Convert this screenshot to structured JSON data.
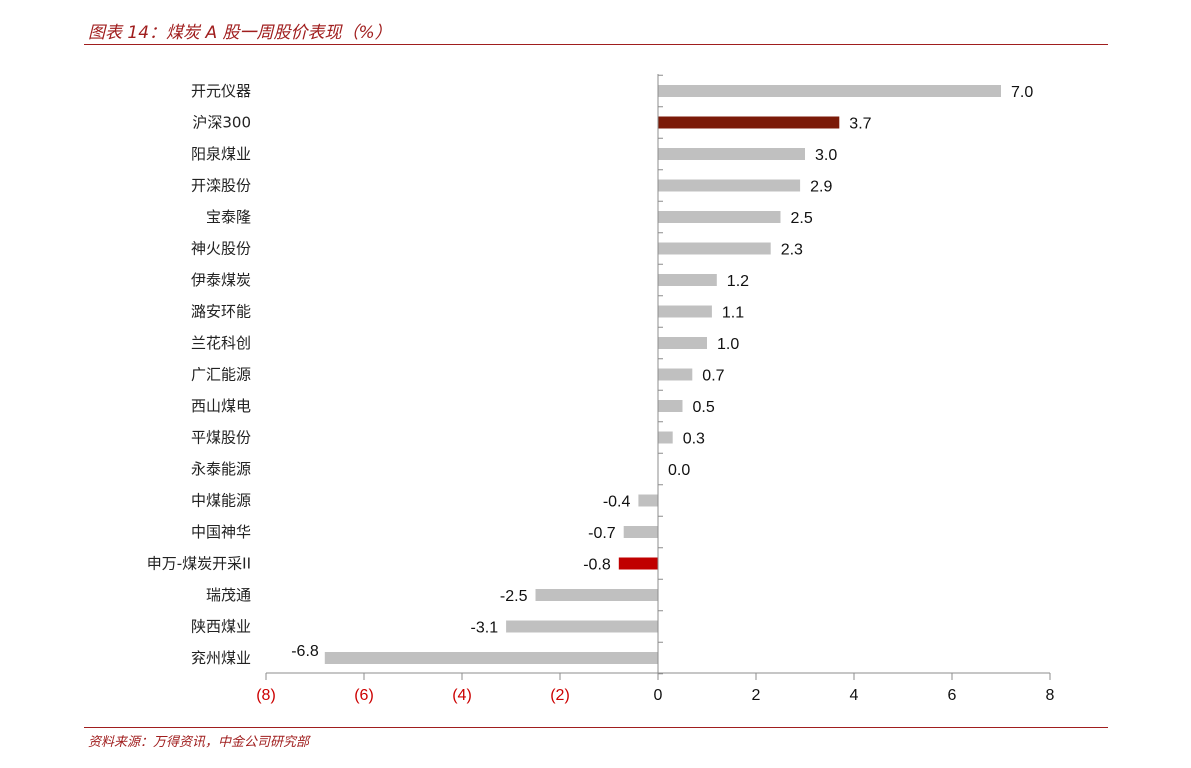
{
  "header": {
    "title": "图表 14：煤炭 A 股一周股价表现（%）"
  },
  "footer": {
    "source": "资料来源：万得资讯，中金公司研究部"
  },
  "colors": {
    "accent": "#a01e1e",
    "bar_default": "#c0c0c0",
    "bar_csi300": "#7b1a08",
    "bar_sector": "#c00000",
    "negative_tick": "#cc0000",
    "positive_tick": "#111111"
  },
  "chart_data": {
    "type": "bar",
    "orientation": "horizontal",
    "categories": [
      "开元仪器",
      "沪深300",
      "阳泉煤业",
      "开滦股份",
      "宝泰隆",
      "神火股份",
      "伊泰煤炭",
      "潞安环能",
      "兰花科创",
      "广汇能源",
      "西山煤电",
      "平煤股份",
      "永泰能源",
      "中煤能源",
      "中国神华",
      "申万-煤炭开采II",
      "瑞茂通",
      "陕西煤业",
      "兖州煤业"
    ],
    "values": [
      7.0,
      3.7,
      3.0,
      2.9,
      2.5,
      2.3,
      1.2,
      1.1,
      1.0,
      0.7,
      0.5,
      0.3,
      0.0,
      -0.4,
      -0.7,
      -0.8,
      -2.5,
      -3.1,
      -6.8
    ],
    "value_labels": [
      "7.0",
      "3.7",
      "3.0",
      "2.9",
      "2.5",
      "2.3",
      "1.2",
      "1.1",
      "1.0",
      "0.7",
      "0.5",
      "0.3",
      "0.0",
      "-0.4",
      "-0.7",
      "-0.8",
      "-2.5",
      "-3.1",
      "-6.8"
    ],
    "highlight": {
      "沪深300": "bar_csi300",
      "申万-煤炭开采II": "bar_sector"
    },
    "xlim": [
      -8,
      8
    ],
    "xticks": [
      -8,
      -6,
      -4,
      -2,
      0,
      2,
      4,
      6,
      8
    ],
    "xtick_labels": [
      "(8)",
      "(6)",
      "(4)",
      "(2)",
      "0",
      "2",
      "4",
      "6",
      "8"
    ],
    "grid": false,
    "legend": "none"
  }
}
